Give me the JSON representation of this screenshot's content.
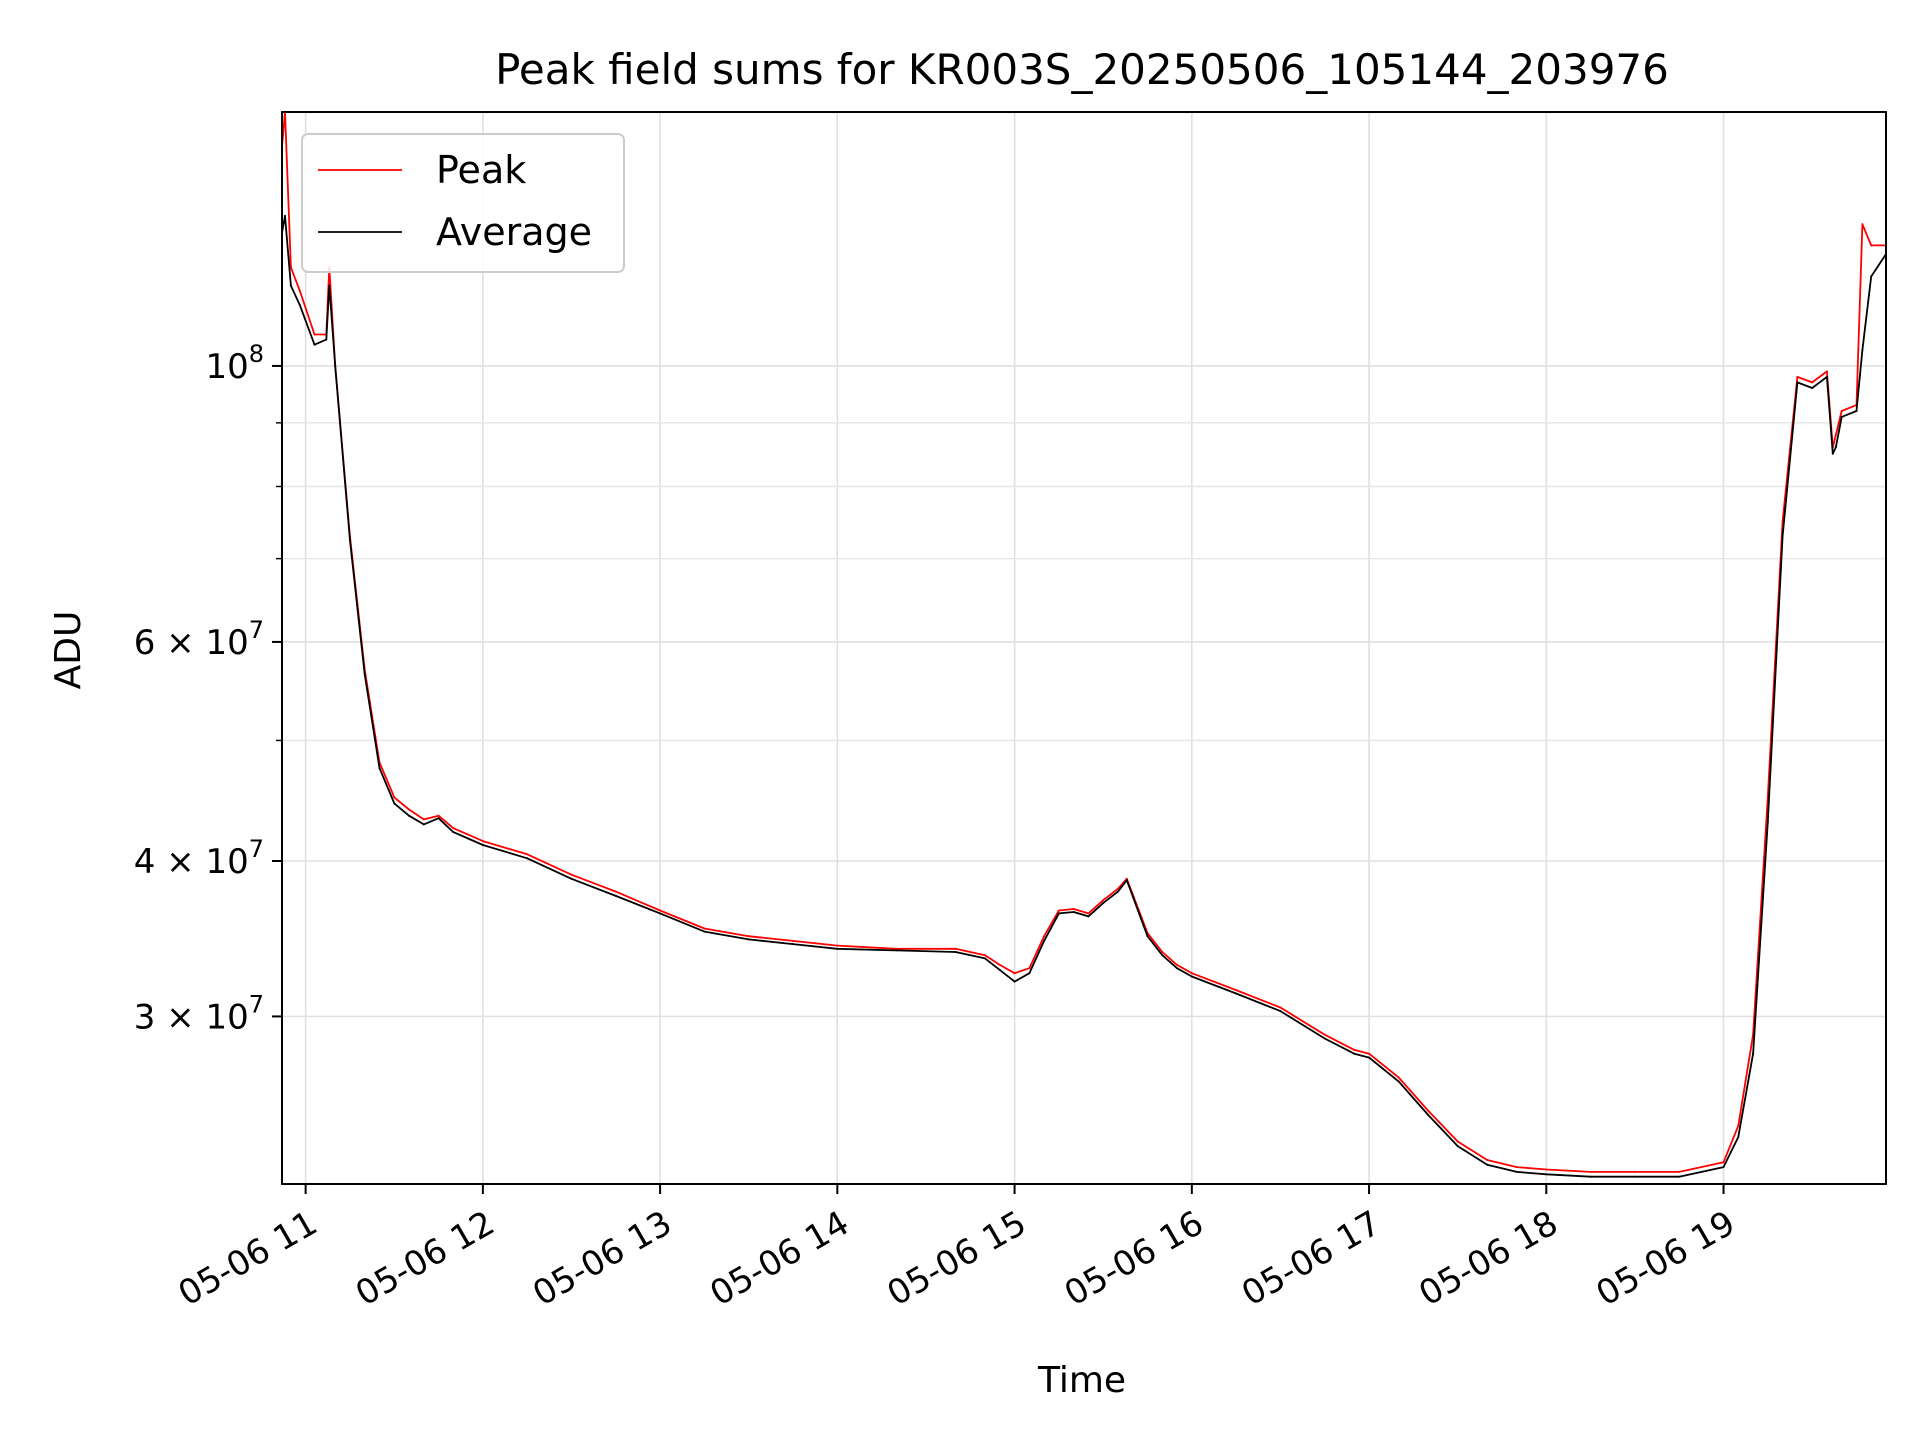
{
  "chart_data": {
    "type": "line",
    "title": "Peak field sums for KR003S_20250506_105144_203976",
    "xlabel": "Time",
    "ylabel": "ADU",
    "yscale": "log",
    "ylim": [
      22000000,
      160000000
    ],
    "xlim": [
      "05-06 10:52",
      "05-06 19:55"
    ],
    "grid": true,
    "legend": {
      "position": "top-left"
    },
    "x_ticks": [
      {
        "label": "05-06 11",
        "t": "05-06 11:00"
      },
      {
        "label": "05-06 12",
        "t": "05-06 12:00"
      },
      {
        "label": "05-06 13",
        "t": "05-06 13:00"
      },
      {
        "label": "05-06 14",
        "t": "05-06 14:00"
      },
      {
        "label": "05-06 15",
        "t": "05-06 15:00"
      },
      {
        "label": "05-06 16",
        "t": "05-06 16:00"
      },
      {
        "label": "05-06 17",
        "t": "05-06 17:00"
      },
      {
        "label": "05-06 18",
        "t": "05-06 18:00"
      },
      {
        "label": "05-06 19",
        "t": "05-06 19:00"
      }
    ],
    "y_ticks": [
      {
        "value": 100000000,
        "base": "10",
        "exp": "8",
        "mult": ""
      },
      {
        "value": 60000000,
        "base": "10",
        "exp": "7",
        "mult": "6 × "
      },
      {
        "value": 40000000,
        "base": "10",
        "exp": "7",
        "mult": "4 × "
      },
      {
        "value": 30000000,
        "base": "10",
        "exp": "7",
        "mult": "3 × "
      }
    ],
    "y_minor_ticks": [
      50000000,
      70000000,
      80000000,
      90000000
    ],
    "x": [
      "05-06 10:52",
      "05-06 10:53",
      "05-06 10:55",
      "05-06 10:58",
      "05-06 11:03",
      "05-06 11:07",
      "05-06 11:08",
      "05-06 11:10",
      "05-06 11:15",
      "05-06 11:20",
      "05-06 11:25",
      "05-06 11:30",
      "05-06 11:35",
      "05-06 11:40",
      "05-06 11:45",
      "05-06 11:50",
      "05-06 11:55",
      "05-06 12:00",
      "05-06 12:15",
      "05-06 12:30",
      "05-06 12:45",
      "05-06 13:00",
      "05-06 13:15",
      "05-06 13:30",
      "05-06 13:45",
      "05-06 14:00",
      "05-06 14:20",
      "05-06 14:40",
      "05-06 14:50",
      "05-06 14:55",
      "05-06 15:00",
      "05-06 15:05",
      "05-06 15:10",
      "05-06 15:15",
      "05-06 15:20",
      "05-06 15:25",
      "05-06 15:30",
      "05-06 15:35",
      "05-06 15:38",
      "05-06 15:45",
      "05-06 15:50",
      "05-06 15:55",
      "05-06 16:00",
      "05-06 16:15",
      "05-06 16:30",
      "05-06 16:45",
      "05-06 16:55",
      "05-06 17:00",
      "05-06 17:10",
      "05-06 17:20",
      "05-06 17:30",
      "05-06 17:40",
      "05-06 17:50",
      "05-06 18:00",
      "05-06 18:15",
      "05-06 18:30",
      "05-06 18:45",
      "05-06 19:00",
      "05-06 19:05",
      "05-06 19:10",
      "05-06 19:15",
      "05-06 19:20",
      "05-06 19:25",
      "05-06 19:30",
      "05-06 19:35",
      "05-06 19:37",
      "05-06 19:38",
      "05-06 19:40",
      "05-06 19:45",
      "05-06 19:47",
      "05-06 19:50",
      "05-06 19:55"
    ],
    "series": [
      {
        "name": "Peak",
        "color": "#ff0000",
        "values": [
          150000000,
          160000000,
          120000000,
          115000000,
          106000000,
          106000000,
          120000000,
          100000000,
          73000000,
          57000000,
          48000000,
          45000000,
          44000000,
          43200000,
          43500000,
          42500000,
          42000000,
          41500000,
          40500000,
          39000000,
          37800000,
          36500000,
          35300000,
          34800000,
          34500000,
          34200000,
          34000000,
          34000000,
          33600000,
          33000000,
          32500000,
          32800000,
          34800000,
          36500000,
          36600000,
          36300000,
          37200000,
          38000000,
          38700000,
          35000000,
          33800000,
          33000000,
          32500000,
          31500000,
          30500000,
          29000000,
          28200000,
          28000000,
          26800000,
          25200000,
          23800000,
          23000000,
          22700000,
          22600000,
          22500000,
          22500000,
          22500000,
          22900000,
          24500000,
          29000000,
          45000000,
          75000000,
          98000000,
          97000000,
          99000000,
          86000000,
          88000000,
          92000000,
          93000000,
          130000000,
          125000000,
          125000000
        ]
      },
      {
        "name": "Average",
        "color": "#000000",
        "values": [
          128000000,
          132000000,
          116000000,
          112000000,
          104000000,
          105000000,
          116000000,
          100000000,
          72500000,
          56500000,
          47500000,
          44500000,
          43500000,
          42800000,
          43300000,
          42200000,
          41700000,
          41200000,
          40200000,
          38700000,
          37500000,
          36300000,
          35100000,
          34600000,
          34300000,
          34000000,
          33900000,
          33800000,
          33400000,
          32700000,
          32000000,
          32500000,
          34500000,
          36300000,
          36400000,
          36100000,
          37000000,
          37800000,
          38600000,
          34800000,
          33600000,
          32800000,
          32300000,
          31300000,
          30300000,
          28800000,
          28000000,
          27800000,
          26600000,
          25000000,
          23600000,
          22800000,
          22500000,
          22400000,
          22300000,
          22300000,
          22300000,
          22700000,
          24000000,
          28000000,
          43000000,
          73000000,
          97000000,
          96000000,
          98000000,
          85000000,
          86000000,
          91000000,
          92000000,
          103000000,
          118000000,
          123000000
        ]
      }
    ]
  }
}
